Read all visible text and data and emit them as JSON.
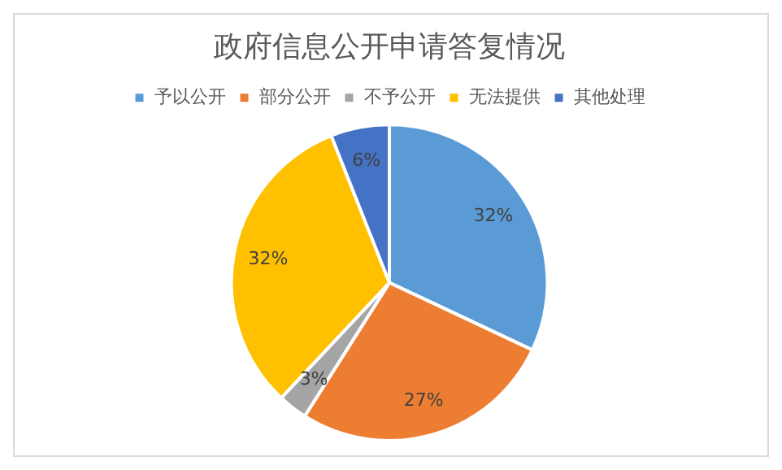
{
  "chart_data": {
    "type": "pie",
    "title": "政府信息公开申请答复情况",
    "categories": [
      "予以公开",
      "部分公开",
      "不予公开",
      "无法提供",
      "其他处理"
    ],
    "values": [
      32,
      27,
      3,
      32,
      6
    ],
    "colors": [
      "#5b9bd5",
      "#ed7d31",
      "#a5a5a5",
      "#ffc000",
      "#4472c4"
    ],
    "value_labels": [
      "32%",
      "27%",
      "3%",
      "32%",
      "6%"
    ],
    "legend": "top"
  }
}
